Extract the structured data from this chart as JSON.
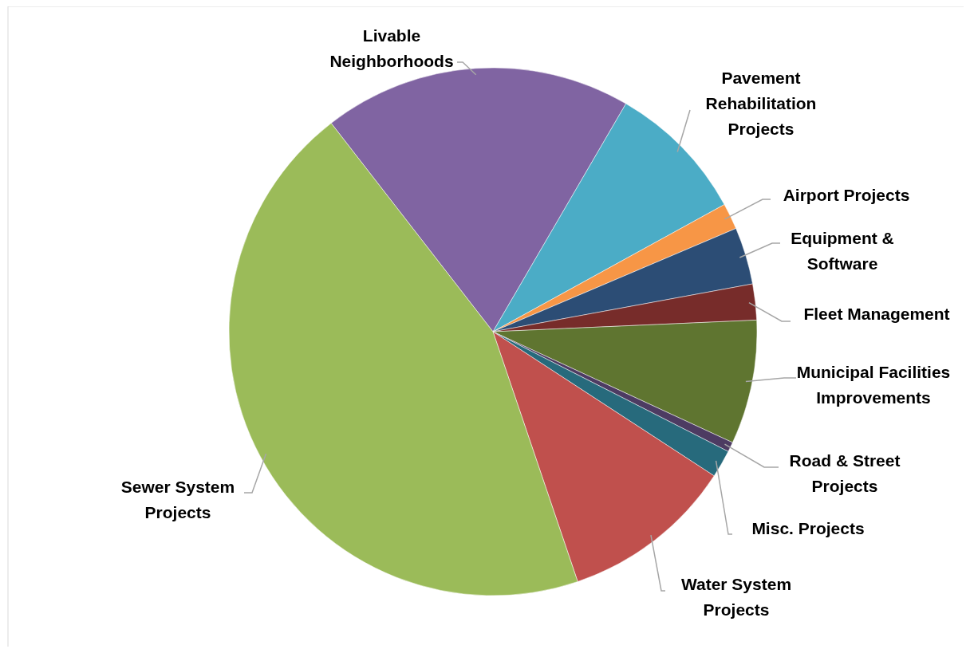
{
  "chart_data": {
    "type": "pie",
    "categories": [
      "Livable Neighborhoods",
      "Pavement Rehabilitation Projects",
      "Airport Projects",
      "Equipment & Software",
      "Fleet Management",
      "Municipal Facilities Improvements",
      "Road & Street Projects",
      "Misc. Projects",
      "Water System Projects",
      "Sewer System Projects"
    ],
    "values": [
      18.9,
      8.6,
      1.6,
      3.5,
      2.2,
      7.6,
      0.6,
      1.7,
      10.6,
      44.7
    ],
    "colors": [
      "#8064a2",
      "#4bacc6",
      "#f79646",
      "#2c4d75",
      "#772c2a",
      "#5f7530",
      "#4d3b62",
      "#276a7c",
      "#c0504d",
      "#9bbb59"
    ]
  }
}
